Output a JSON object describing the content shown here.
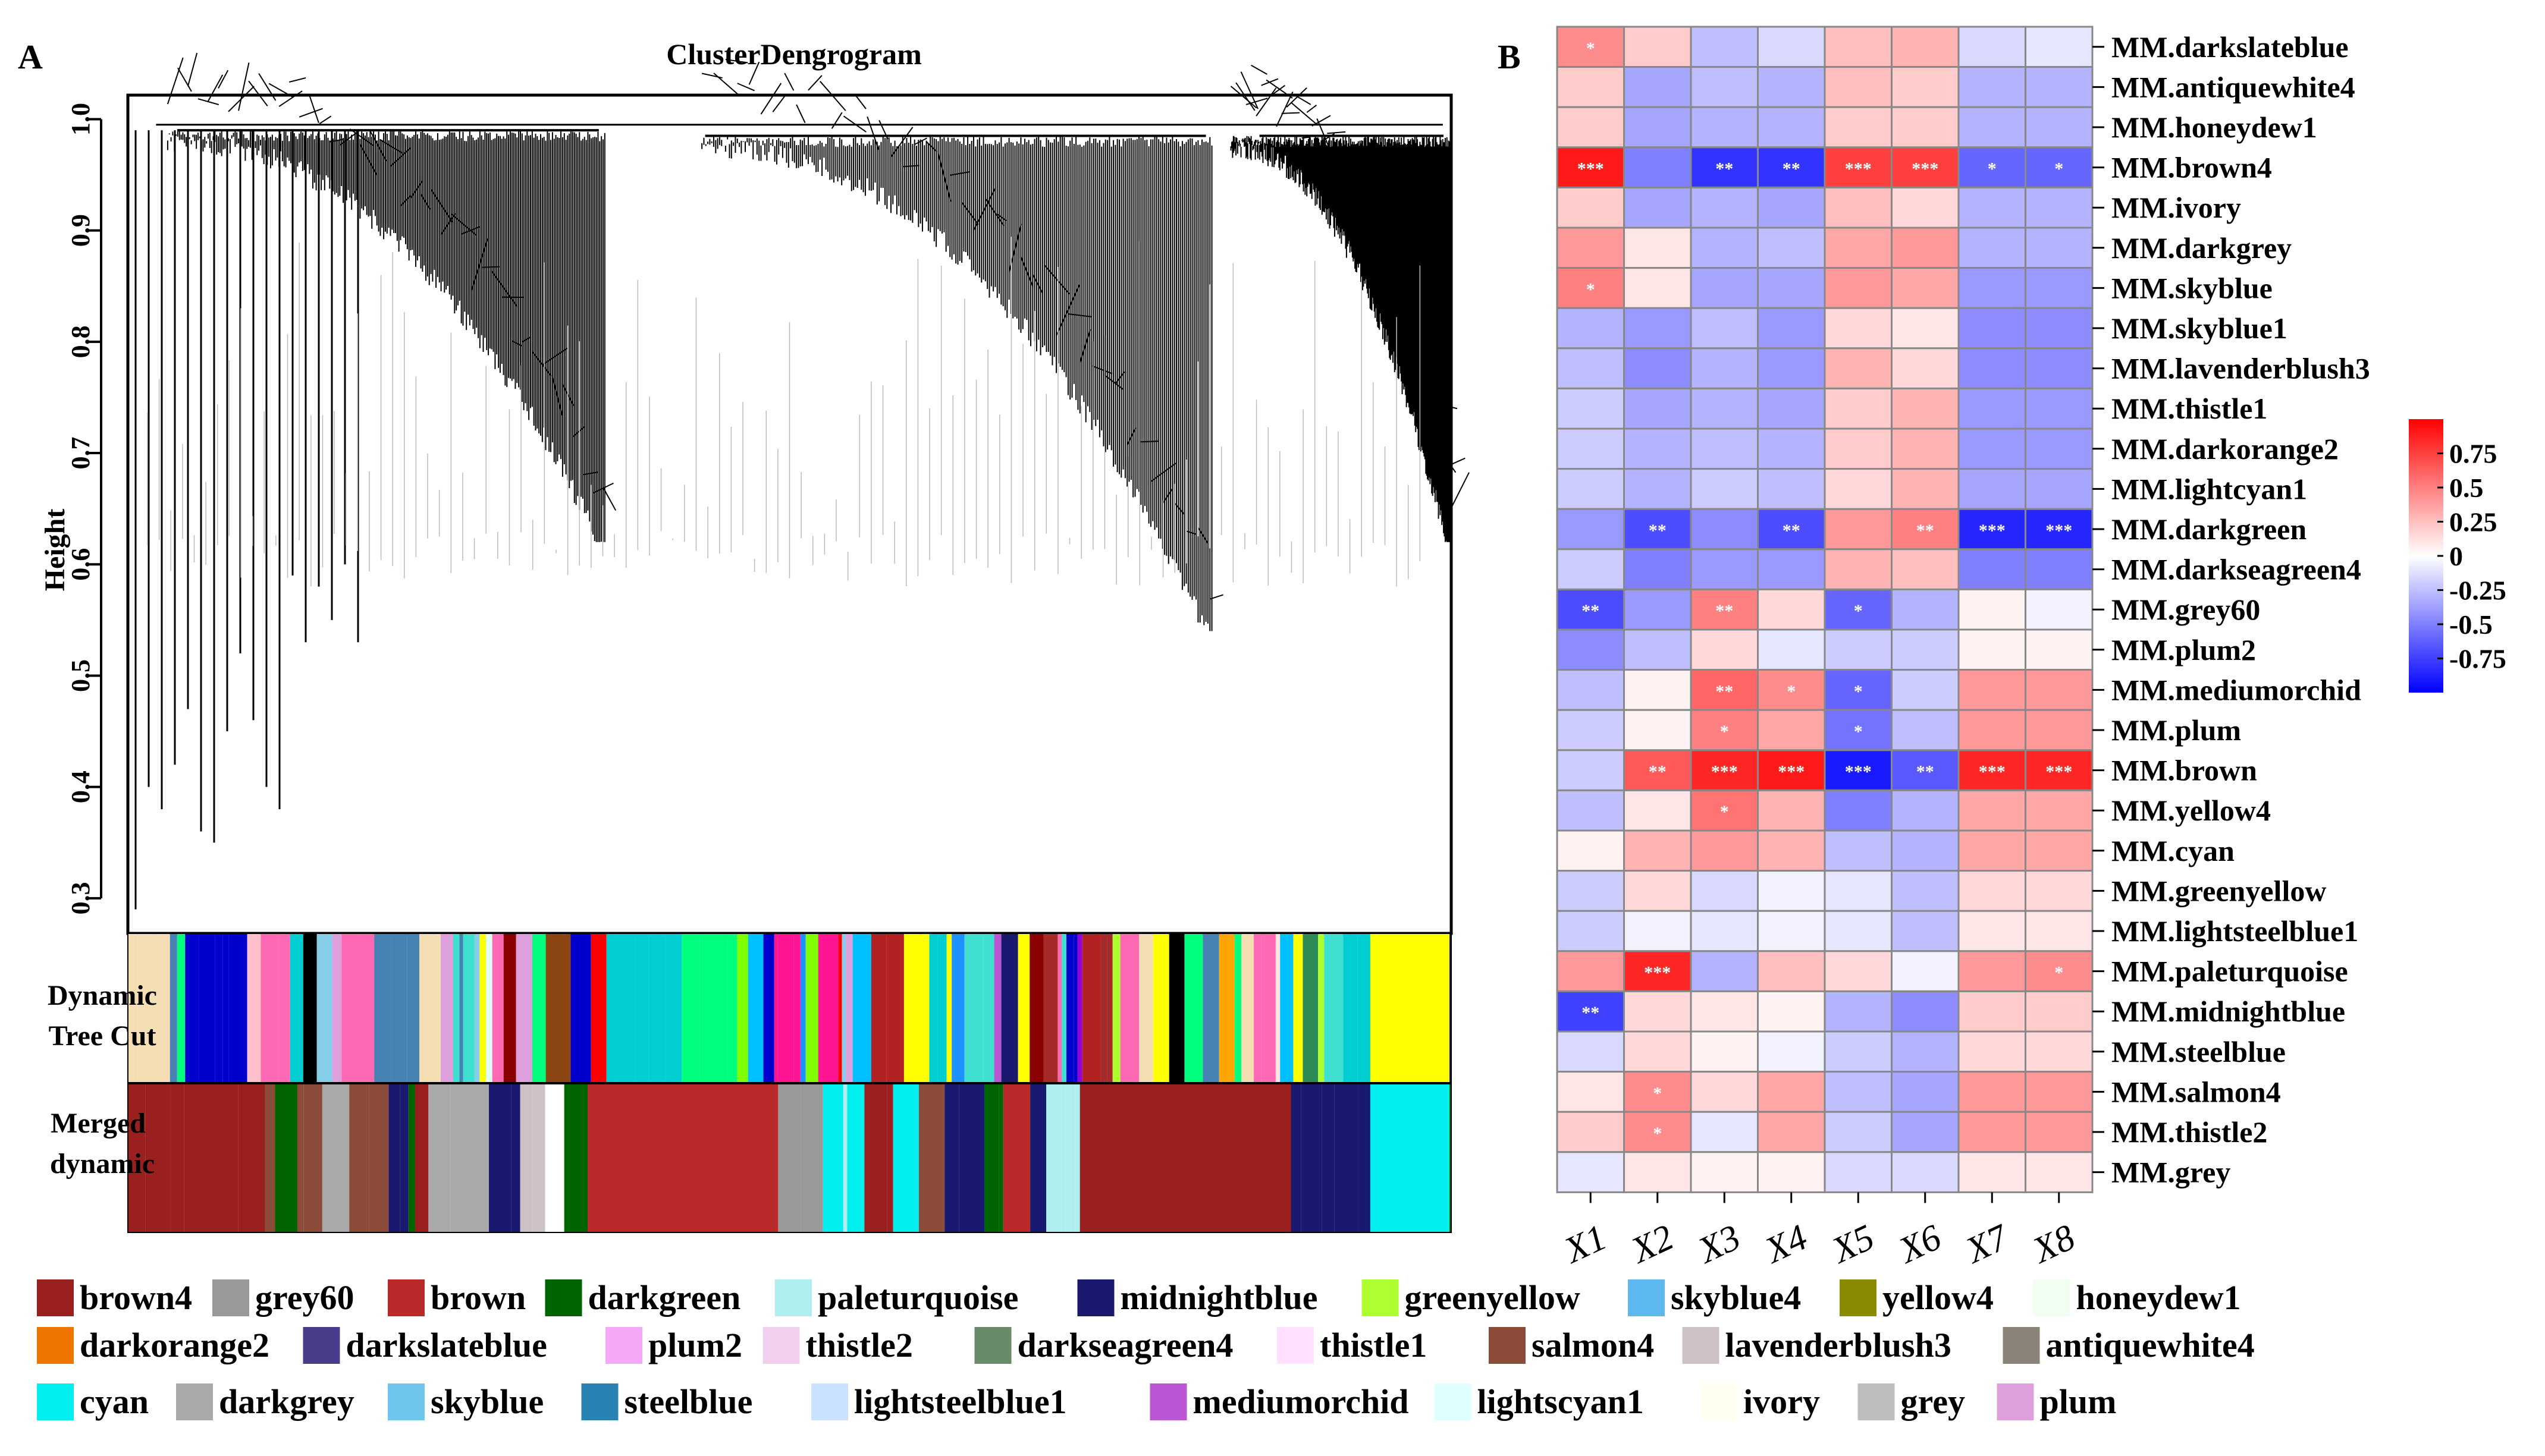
{
  "panel_a": {
    "label": "A",
    "title": "ClusterDengrogram",
    "ylabel": "Height",
    "yticks": [
      "0.3",
      "0.4",
      "0.5",
      "0.6",
      "0.7",
      "0.8",
      "0.9",
      "1.0"
    ],
    "band_labels": {
      "dynamic_line1": "Dynamic",
      "dynamic_line2": "Tree Cut",
      "merged_line1": "Merged",
      "merged_line2": "dynamic"
    }
  },
  "panel_b": {
    "label": "B"
  },
  "colors": {
    "high": "#ff0000",
    "low": "#0000ff",
    "mid": "#ffffff",
    "dendrogram": "#000000"
  },
  "chart_data": [
    {
      "type": "dendrogram",
      "title": "ClusterDengrogram",
      "xlabel": "",
      "ylabel": "Height",
      "ylim": [
        0.27,
        1.02
      ],
      "lobes": [
        {
          "from": 0.0,
          "to": 0.36,
          "top": 0.99,
          "floor": 0.62
        },
        {
          "from": 0.4,
          "to": 0.82,
          "top": 0.985,
          "floor": 0.54
        },
        {
          "from": 0.82,
          "to": 1.0,
          "top": 0.985,
          "floor": 0.62
        }
      ],
      "tall_leaves": [
        0.29,
        0.4,
        0.38,
        0.42,
        0.47,
        0.36,
        0.35,
        0.45,
        0.52,
        0.46,
        0.4,
        0.38,
        0.59,
        0.53,
        0.58,
        0.55,
        0.6,
        0.53
      ]
    },
    {
      "type": "heatmap",
      "rows": [
        "MM.darkslateblue",
        "MM.antiquewhite4",
        "MM.honeydew1",
        "MM.brown4",
        "MM.ivory",
        "MM.darkgrey",
        "MM.skyblue",
        "MM.skyblue1",
        "MM.lavenderblush3",
        "MM.thistle1",
        "MM.darkorange2",
        "MM.lightcyan1",
        "MM.darkgreen",
        "MM.darkseagreen4",
        "MM.grey60",
        "MM.plum2",
        "MM.mediumorchid",
        "MM.plum",
        "MM.brown",
        "MM.yellow4",
        "MM.cyan",
        "MM.greenyellow",
        "MM.lightsteelblue1",
        "MM.paleturquoise",
        "MM.midnightblue",
        "MM.steelblue",
        "MM.salmon4",
        "MM.thistle2",
        "MM.grey"
      ],
      "columns": [
        "X1",
        "X2",
        "X3",
        "X4",
        "X5",
        "X6",
        "X7",
        "X8"
      ],
      "values": [
        [
          0.45,
          0.2,
          -0.25,
          -0.15,
          0.25,
          0.3,
          -0.15,
          -0.1
        ],
        [
          0.2,
          -0.35,
          -0.25,
          -0.3,
          0.25,
          0.2,
          -0.3,
          -0.3
        ],
        [
          0.2,
          -0.35,
          -0.3,
          -0.3,
          0.2,
          0.2,
          -0.3,
          -0.3
        ],
        [
          0.9,
          -0.5,
          -0.8,
          -0.8,
          0.75,
          0.75,
          -0.6,
          -0.6
        ],
        [
          0.2,
          -0.35,
          -0.3,
          -0.35,
          0.25,
          0.15,
          -0.3,
          -0.3
        ],
        [
          0.4,
          0.1,
          -0.3,
          -0.25,
          0.35,
          0.4,
          -0.3,
          -0.3
        ],
        [
          0.5,
          0.1,
          -0.35,
          -0.35,
          0.4,
          0.35,
          -0.4,
          -0.4
        ],
        [
          -0.3,
          -0.4,
          -0.25,
          -0.4,
          0.15,
          0.1,
          -0.45,
          -0.45
        ],
        [
          -0.25,
          -0.45,
          -0.3,
          -0.4,
          0.3,
          0.15,
          -0.45,
          -0.45
        ],
        [
          -0.2,
          -0.35,
          -0.3,
          -0.35,
          0.2,
          0.3,
          -0.4,
          -0.4
        ],
        [
          -0.2,
          -0.3,
          -0.25,
          -0.3,
          0.2,
          0.3,
          -0.4,
          -0.4
        ],
        [
          -0.2,
          -0.3,
          -0.2,
          -0.25,
          0.15,
          0.3,
          -0.35,
          -0.35
        ],
        [
          -0.4,
          -0.7,
          -0.45,
          -0.7,
          0.4,
          0.5,
          -0.85,
          -0.85
        ],
        [
          -0.2,
          -0.5,
          -0.4,
          -0.4,
          0.3,
          0.25,
          -0.5,
          -0.5
        ],
        [
          -0.7,
          -0.4,
          0.5,
          0.15,
          -0.6,
          -0.3,
          0.05,
          -0.05
        ],
        [
          -0.45,
          -0.25,
          0.15,
          -0.1,
          -0.2,
          -0.2,
          0.05,
          0.05
        ],
        [
          -0.25,
          0.05,
          0.6,
          0.45,
          -0.6,
          -0.2,
          0.4,
          0.4
        ],
        [
          -0.2,
          0.05,
          0.5,
          0.35,
          -0.55,
          -0.25,
          0.4,
          0.4
        ],
        [
          -0.2,
          0.65,
          0.85,
          0.9,
          -0.9,
          -0.65,
          0.85,
          0.85
        ],
        [
          -0.25,
          0.1,
          0.55,
          0.3,
          -0.5,
          -0.3,
          0.35,
          0.35
        ],
        [
          0.05,
          0.3,
          0.4,
          0.3,
          -0.25,
          -0.3,
          0.35,
          0.35
        ],
        [
          -0.2,
          0.15,
          -0.15,
          -0.05,
          -0.1,
          -0.25,
          0.15,
          0.15
        ],
        [
          -0.2,
          -0.05,
          -0.1,
          -0.05,
          -0.1,
          -0.25,
          0.1,
          0.1
        ],
        [
          0.4,
          0.85,
          -0.3,
          0.25,
          0.15,
          -0.05,
          0.4,
          0.45
        ],
        [
          -0.75,
          0.15,
          0.1,
          0.05,
          -0.3,
          -0.45,
          0.2,
          0.2
        ],
        [
          -0.15,
          0.15,
          0.05,
          -0.05,
          -0.2,
          -0.3,
          0.15,
          0.15
        ],
        [
          0.1,
          0.45,
          0.15,
          0.35,
          -0.25,
          -0.35,
          0.4,
          0.4
        ],
        [
          0.2,
          0.45,
          -0.1,
          0.35,
          -0.2,
          -0.35,
          0.4,
          0.4
        ],
        [
          -0.1,
          0.1,
          0.05,
          0.05,
          -0.15,
          -0.15,
          0.1,
          0.1
        ]
      ],
      "stars": [
        [
          "*",
          "",
          "",
          "",
          "",
          "",
          "",
          ""
        ],
        [
          "",
          "",
          "",
          "",
          "",
          "",
          "",
          ""
        ],
        [
          "",
          "",
          "",
          "",
          "",
          "",
          "",
          ""
        ],
        [
          "***",
          "",
          "**",
          "**",
          "***",
          "***",
          "*",
          "*"
        ],
        [
          "",
          "",
          "",
          "",
          "",
          "",
          "",
          ""
        ],
        [
          "",
          "",
          "",
          "",
          "",
          "",
          "",
          ""
        ],
        [
          "*",
          "",
          "",
          "",
          "",
          "",
          "",
          ""
        ],
        [
          "",
          "",
          "",
          "",
          "",
          "",
          "",
          ""
        ],
        [
          "",
          "",
          "",
          "",
          "",
          "",
          "",
          ""
        ],
        [
          "",
          "",
          "",
          "",
          "",
          "",
          "",
          ""
        ],
        [
          "",
          "",
          "",
          "",
          "",
          "",
          "",
          ""
        ],
        [
          "",
          "",
          "",
          "",
          "",
          "",
          "",
          ""
        ],
        [
          "",
          "**",
          "",
          "**",
          "",
          "**",
          "***",
          "***"
        ],
        [
          "",
          "",
          "",
          "",
          "",
          "",
          "",
          ""
        ],
        [
          "**",
          "",
          "**",
          "",
          "*",
          "",
          "",
          ""
        ],
        [
          "",
          "",
          "",
          "",
          "",
          "",
          "",
          ""
        ],
        [
          "",
          "",
          "**",
          "*",
          "*",
          "",
          "",
          ""
        ],
        [
          "",
          "",
          "*",
          "",
          "*",
          "",
          "",
          ""
        ],
        [
          "",
          "**",
          "***",
          "***",
          "***",
          "**",
          "***",
          "***"
        ],
        [
          "",
          "",
          "*",
          "",
          "",
          "",
          "",
          ""
        ],
        [
          "",
          "",
          "",
          "",
          "",
          "",
          "",
          ""
        ],
        [
          "",
          "",
          "",
          "",
          "",
          "",
          "",
          ""
        ],
        [
          "",
          "",
          "",
          "",
          "",
          "",
          "",
          ""
        ],
        [
          "",
          "***",
          "",
          "",
          "",
          "",
          "",
          "*"
        ],
        [
          "**",
          "",
          "",
          "",
          "",
          "",
          "",
          ""
        ],
        [
          "",
          "",
          "",
          "",
          "",
          "",
          "",
          ""
        ],
        [
          "",
          "*",
          "",
          "",
          "",
          "",
          "",
          ""
        ],
        [
          "",
          "*",
          "",
          "",
          "",
          "",
          "",
          ""
        ],
        [
          "",
          "",
          "",
          "",
          "",
          "",
          "",
          ""
        ]
      ],
      "legend": {
        "ticks": [
          "0.75",
          "0.5",
          "0.25",
          "0",
          "-0.25",
          "-0.5",
          "-0.75"
        ],
        "range": [
          -1,
          1
        ]
      }
    }
  ],
  "module_legend": [
    {
      "name": "brown4",
      "color": "#9a2020"
    },
    {
      "name": "grey60",
      "color": "#999999"
    },
    {
      "name": "brown",
      "color": "#bb2a2a"
    },
    {
      "name": "darkgreen",
      "color": "#006400"
    },
    {
      "name": "paleturquoise",
      "color": "#aeeeee"
    },
    {
      "name": "midnightblue",
      "color": "#191970"
    },
    {
      "name": "greenyellow",
      "color": "#adff2f"
    },
    {
      "name": "skyblue4",
      "color": "#5cb8ee"
    },
    {
      "name": "yellow4",
      "color": "#8b8b00"
    },
    {
      "name": "honeydew1",
      "color": "#f0fff0"
    },
    {
      "name": "darkorange2",
      "color": "#ee7600"
    },
    {
      "name": "darkslateblue",
      "color": "#483d8b"
    },
    {
      "name": "plum2",
      "color": "#f5a8f5"
    },
    {
      "name": "thistle2",
      "color": "#f0d0ec"
    },
    {
      "name": "darkseagreen4",
      "color": "#698b69"
    },
    {
      "name": "thistle1",
      "color": "#ffe1ff"
    },
    {
      "name": "salmon4",
      "color": "#8b4c39"
    },
    {
      "name": "lavenderblush3",
      "color": "#cdc1c5"
    },
    {
      "name": "antiquewhite4",
      "color": "#8b8378"
    },
    {
      "name": "cyan",
      "color": "#00eeee"
    },
    {
      "name": "darkgrey",
      "color": "#a9a9a9"
    },
    {
      "name": "skyblue",
      "color": "#6ec6ec"
    },
    {
      "name": "steelblue",
      "color": "#2a82b4"
    },
    {
      "name": "lightsteelblue1",
      "color": "#cae1ff"
    },
    {
      "name": "mediumorchid",
      "color": "#ba55d3"
    },
    {
      "name": "lightscyan1",
      "color": "#e0ffff"
    },
    {
      "name": "ivory",
      "color": "#fffff0"
    },
    {
      "name": "grey",
      "color": "#bebebe"
    },
    {
      "name": "plum",
      "color": "#dda0dd"
    }
  ],
  "band_palettes": {
    "dynamic": [
      "#8b0000",
      "#ff0000",
      "#00ced1",
      "#0000cd",
      "#191970",
      "#ff00ff",
      "#9400d3",
      "#ff69b4",
      "#adff2f",
      "#00ff7f",
      "#ffa500",
      "#ffff00",
      "#000000",
      "#87ceeb",
      "#4682b4",
      "#a52a2a",
      "#ffc0cb",
      "#dda0dd",
      "#40e0d0",
      "#8b4513",
      "#2e8b57",
      "#ff1493",
      "#1e90ff",
      "#7fff00",
      "#f5deb3",
      "#e0ffff",
      "#b22222",
      "#ba55d3",
      "#00bfff",
      "#ffe4e1"
    ],
    "merged": [
      "#9a2020",
      "#bb2a2a",
      "#999999",
      "#a9a9a9",
      "#006400",
      "#191970",
      "#ffffff",
      "#cdc1c5",
      "#8b4c39",
      "#00eeee",
      "#aeeeee"
    ]
  }
}
